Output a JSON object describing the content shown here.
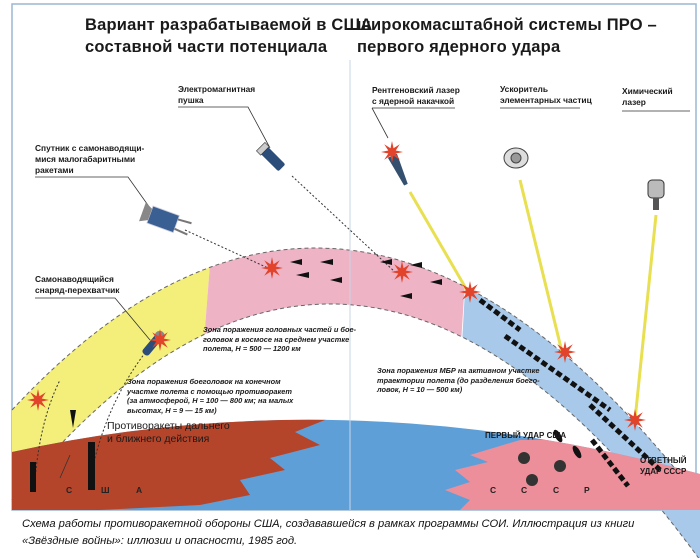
{
  "title": {
    "line1_left": "Вариант разрабатываемой в США",
    "line1_right": "широкомасштабной системы ПРО –",
    "line2_left": "составной части потенциала",
    "line2_right": "первого ядерного удара"
  },
  "weapons": {
    "em_gun": [
      "Электромагнитная",
      "пушка"
    ],
    "satellite": [
      "Спутник с самонаводящи-",
      "мися малогабаритными",
      "ракетами"
    ],
    "interceptor": [
      "Самонаводящийся",
      "снаряд-перехватчик"
    ],
    "xray_laser": [
      "Рентгеновский лазер",
      "с ядерной накачкой"
    ],
    "particle_accelerator": [
      "Ускоритель",
      "элементарных частиц"
    ],
    "chemical_laser": [
      "Химический",
      "лазер"
    ],
    "antimissiles": [
      "Противоракеты дальнего",
      "и ближнего действия"
    ]
  },
  "zones": {
    "midcourse": [
      "Зона поражения головных частей и бое-",
      "головок в космосе на среднем участке",
      "полета, H = 500 — 1200 км"
    ],
    "terminal": [
      "Зона поражения боеголовок на конечном",
      "участке полета с помощью противоракет",
      "(за атмосферой, H = 100 — 800 км; на малых",
      "высотах, H = 9 — 15 км)"
    ],
    "boost": [
      "Зона поражения МБР на активном участке",
      "траектории полета (до разделения боего-",
      "ловок, H = 10 — 500 км)"
    ]
  },
  "countries": {
    "usa": [
      "С",
      "Ш",
      "А"
    ],
    "ussr": [
      "С",
      "С",
      "С",
      "Р"
    ]
  },
  "strikes": {
    "first": "ПЕРВЫЙ УДАР США",
    "retaliation": [
      "ОТВЕТНЫЙ",
      "УДАР СССР"
    ]
  },
  "colors": {
    "zone_terminal": "#f4ef7a",
    "zone_midcourse": "#efb3c6",
    "zone_boost": "#a9c9ea",
    "usa_land": "#b5452a",
    "ocean": "#5f9fd8",
    "ussr_land": "#ec8f9a",
    "explosion": "#e2432b",
    "laser_beam": "#e8e050"
  },
  "caption": {
    "line1": "Схема работы противоракетной обороны США, создававшейся в рамках программы СОИ. Иллюстрация из книги",
    "line2": "«Звёздные войны»: иллюзии и опасности, 1985 год."
  }
}
